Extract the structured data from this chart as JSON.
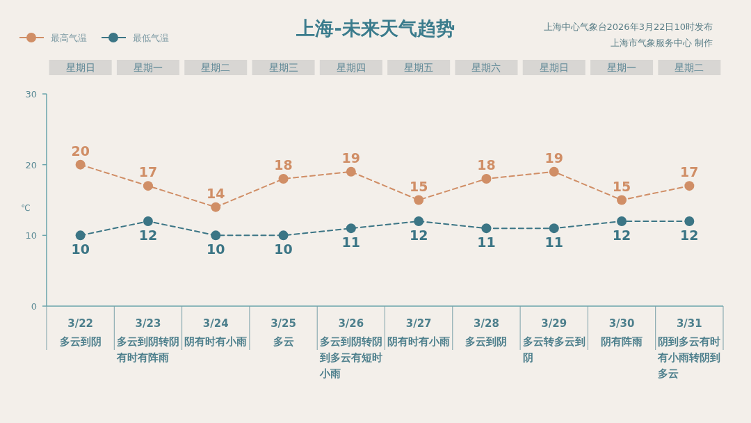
{
  "chart_data": {
    "type": "line",
    "title": "上海-未来天气趋势",
    "ylabel": "℃",
    "categories": [
      "3/22",
      "3/23",
      "3/24",
      "3/25",
      "3/26",
      "3/27",
      "3/28",
      "3/29",
      "3/30",
      "3/31"
    ],
    "series": [
      {
        "name": "最高气温",
        "color": "#d08e66",
        "values": [
          20,
          17,
          14,
          18,
          19,
          15,
          18,
          19,
          15,
          17
        ]
      },
      {
        "name": "最低气温",
        "color": "#3b7585",
        "values": [
          10,
          12,
          10,
          10,
          11,
          12,
          11,
          11,
          12,
          12
        ]
      }
    ],
    "ylim": [
      0,
      30
    ],
    "yticks": [
      0,
      10,
      20,
      30
    ],
    "data_labels": true,
    "legend": "top left",
    "marker": "circle",
    "line_style": "dashed",
    "annotations": [
      "上海中心气象台2026年3月22日10时发布",
      "上海市气象服务中心 制作",
      "星期日",
      "星期一",
      "星期二",
      "星期三",
      "星期四",
      "星期五",
      "星期六",
      "星期日",
      "星期一",
      "星期二",
      "多云到阴",
      "多云到阴转阴有时有阵雨",
      "阴有时有小雨",
      "多云",
      "多云到阴转阴到多云有短时小雨",
      "阴有时有小雨",
      "多云到阴",
      "多云转多云到阴",
      "阴有阵雨",
      "阴到多云有时有小雨转阴到多云"
    ]
  }
}
